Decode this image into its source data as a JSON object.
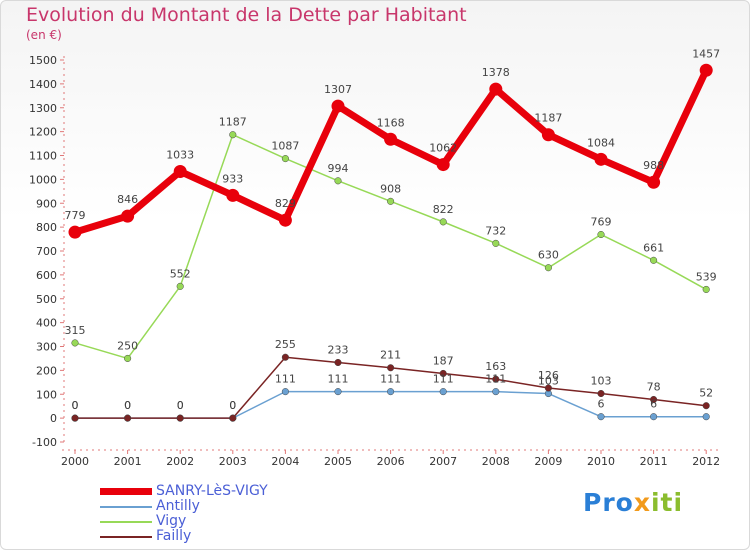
{
  "title": "Evolution du Montant de la Dette par Habitant",
  "subtitle": "(en €)",
  "logo": {
    "p1": "Pro",
    "p2": "x",
    "p3": "iti"
  },
  "chart_data": {
    "type": "line",
    "x": [
      "2000",
      "2001",
      "2002",
      "2003",
      "2004",
      "2005",
      "2006",
      "2007",
      "2008",
      "2009",
      "2010",
      "2011",
      "2012"
    ],
    "ylim": [
      -100,
      1500
    ],
    "yticks": [
      -100,
      0,
      100,
      200,
      300,
      400,
      500,
      600,
      700,
      800,
      900,
      1000,
      1100,
      1200,
      1300,
      1400,
      1500
    ],
    "grid": false,
    "legend_position": "bottom-left",
    "series": [
      {
        "name": "SANRY-LèS-VIGY",
        "color": "#e8000b",
        "width": 7,
        "values": [
          779,
          846,
          1033,
          933,
          829,
          1307,
          1168,
          1062,
          1378,
          1187,
          1084,
          988,
          1457
        ],
        "labels": [
          "779",
          "846",
          "1033",
          "933",
          "829",
          "1307",
          "1168",
          "1062",
          "1378",
          "1187",
          "1084",
          "988",
          "1457"
        ]
      },
      {
        "name": "Antilly",
        "color": "#6aa0d1",
        "width": 1.5,
        "values": [
          0,
          0,
          0,
          0,
          111,
          111,
          111,
          111,
          111,
          103,
          6,
          6,
          6
        ],
        "labels": [
          "0",
          "0",
          "0",
          "0",
          "111",
          "111",
          "111",
          "111",
          "111",
          "103",
          "6",
          "6",
          ""
        ]
      },
      {
        "name": "Vigy",
        "color": "#97d957",
        "width": 1.5,
        "values": [
          315,
          250,
          552,
          1187,
          1087,
          994,
          908,
          822,
          732,
          630,
          769,
          661,
          539
        ],
        "labels": [
          "315",
          "250",
          "552",
          "1187",
          "1087",
          "994",
          "908",
          "822",
          "732",
          "630",
          "769",
          "661",
          "539"
        ]
      },
      {
        "name": "Failly",
        "color": "#7a2424",
        "width": 1.5,
        "values": [
          0,
          0,
          0,
          0,
          255,
          233,
          211,
          187,
          163,
          126,
          103,
          78,
          52
        ],
        "labels": [
          "0",
          "0",
          "0",
          "0",
          "255",
          "233",
          "211",
          "187",
          "163",
          "126",
          "103",
          "78",
          "52"
        ]
      }
    ]
  }
}
